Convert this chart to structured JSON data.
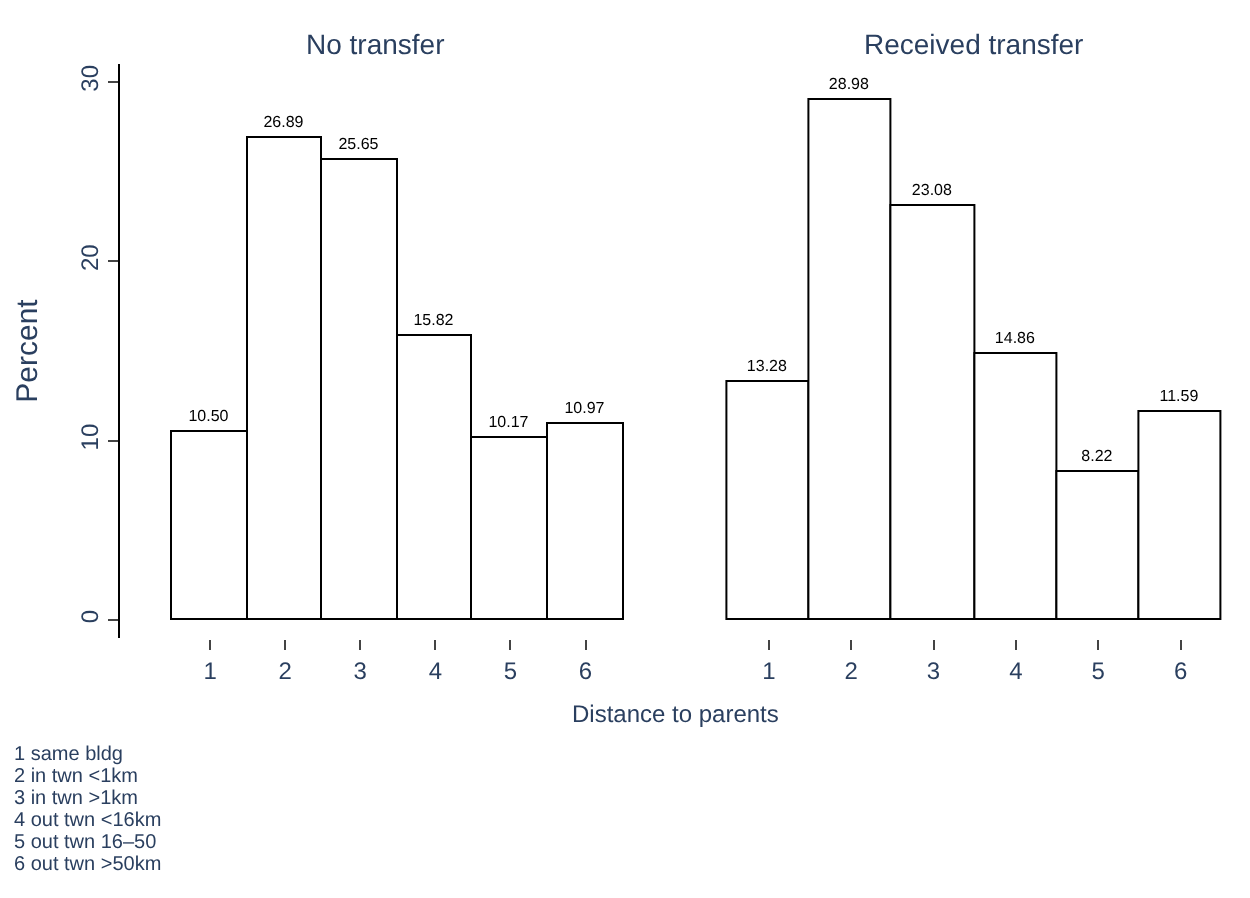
{
  "chart_data": [
    {
      "type": "bar",
      "title": "No transfer",
      "ylabel": "Percent",
      "xlabel": "Distance to parents",
      "categories": [
        "1",
        "2",
        "3",
        "4",
        "5",
        "6"
      ],
      "series": [
        {
          "color": "#ffffff",
          "values": [
            10.5,
            26.89,
            25.65,
            15.82,
            10.17,
            10.97
          ]
        }
      ],
      "value_labels": [
        "10.50",
        "26.89",
        "25.65",
        "15.82",
        "10.17",
        "10.97"
      ],
      "ylim": [
        -1,
        31
      ],
      "yticks": [
        0,
        10,
        20,
        30
      ],
      "annotations": [
        "1 same bldg",
        "2 in twn <1km",
        "3 in twn >1km",
        "4 out twn <16km",
        "5 out twn 16–50",
        "6 out twn >50km"
      ]
    },
    {
      "type": "bar",
      "title": "Received transfer",
      "categories": [
        "1",
        "2",
        "3",
        "4",
        "5",
        "6"
      ],
      "series": [
        {
          "color": "#ffffff",
          "values": [
            13.28,
            28.98,
            23.08,
            14.86,
            8.22,
            11.59
          ]
        }
      ],
      "data_labels": true,
      "tick_labels": "x"
    }
  ]
}
